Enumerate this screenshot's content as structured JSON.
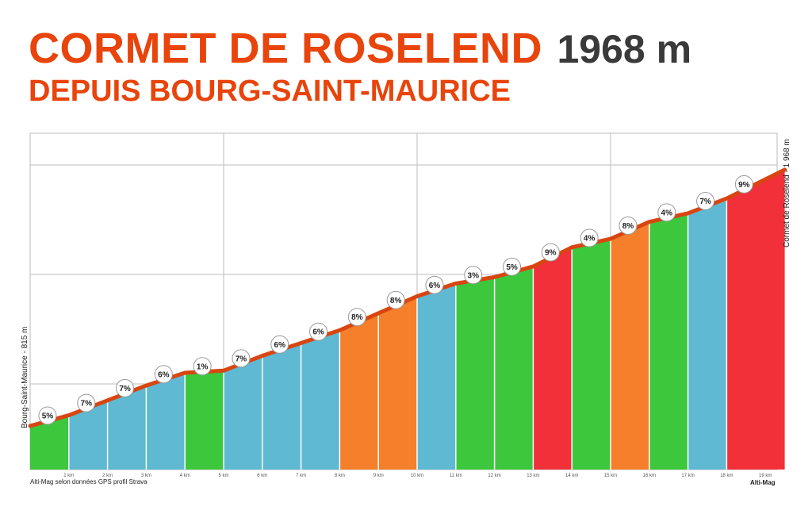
{
  "header": {
    "title": "CORMET DE ROSELEND",
    "altitude": "1968 m",
    "subtitle": "DEPUIS BOURG-SAINT-MAURICE"
  },
  "footer": {
    "credit": "Alti-Mag selon données GPS profil Strava",
    "brand": "Alti-Mag"
  },
  "chart_data": {
    "type": "area",
    "start_label": "Bourg-Saint-Maurice - 815 m",
    "end_label": "Cormet de Roselend - 1 968 m",
    "start_altitude": 815,
    "end_altitude": 1968,
    "total_km": 19.5,
    "x_tick_labels": [
      "1 km",
      "2 km",
      "3 km",
      "4 km",
      "5 km",
      "6 km",
      "7 km",
      "8 km",
      "9 km",
      "10 km",
      "11 km",
      "12 km",
      "13 km",
      "14 km",
      "15 km",
      "16 km",
      "17 km",
      "18 km",
      "19 km"
    ],
    "segments": [
      {
        "km_start": 0,
        "km_end": 1,
        "grade": "5%",
        "color": "green"
      },
      {
        "km_start": 1,
        "km_end": 2,
        "grade": "7%",
        "color": "blue"
      },
      {
        "km_start": 2,
        "km_end": 3,
        "grade": "7%",
        "color": "blue"
      },
      {
        "km_start": 3,
        "km_end": 4,
        "grade": "6%",
        "color": "blue"
      },
      {
        "km_start": 4,
        "km_end": 5,
        "grade": "1%",
        "color": "green"
      },
      {
        "km_start": 5,
        "km_end": 6,
        "grade": "7%",
        "color": "blue"
      },
      {
        "km_start": 6,
        "km_end": 7,
        "grade": "6%",
        "color": "blue"
      },
      {
        "km_start": 7,
        "km_end": 8,
        "grade": "6%",
        "color": "blue"
      },
      {
        "km_start": 8,
        "km_end": 9,
        "grade": "8%",
        "color": "orange"
      },
      {
        "km_start": 9,
        "km_end": 10,
        "grade": "8%",
        "color": "orange"
      },
      {
        "km_start": 10,
        "km_end": 11,
        "grade": "6%",
        "color": "blue"
      },
      {
        "km_start": 11,
        "km_end": 12,
        "grade": "3%",
        "color": "green"
      },
      {
        "km_start": 12,
        "km_end": 13,
        "grade": "5%",
        "color": "green"
      },
      {
        "km_start": 13,
        "km_end": 14,
        "grade": "9%",
        "color": "red"
      },
      {
        "km_start": 14,
        "km_end": 15,
        "grade": "4%",
        "color": "green"
      },
      {
        "km_start": 15,
        "km_end": 16,
        "grade": "8%",
        "color": "orange"
      },
      {
        "km_start": 16,
        "km_end": 17,
        "grade": "4%",
        "color": "green"
      },
      {
        "km_start": 17,
        "km_end": 18,
        "grade": "7%",
        "color": "blue"
      },
      {
        "km_start": 18,
        "km_end": 19.5,
        "grade": "9%",
        "color": "red"
      }
    ],
    "colors": {
      "green": "#3cc73c",
      "blue": "#5fb9d2",
      "orange": "#f57f2a",
      "red": "#f1303a",
      "profile_line": "#d94511",
      "title": "#e8440b"
    },
    "grid": true
  }
}
